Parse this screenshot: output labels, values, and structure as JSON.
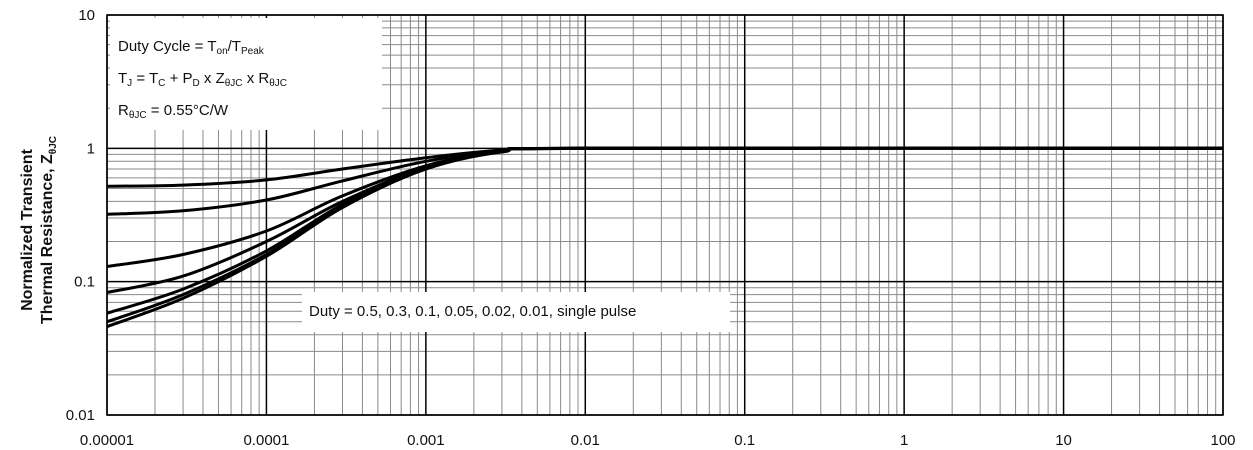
{
  "chart_data": {
    "type": "line",
    "x_scale": "log",
    "y_scale": "log",
    "xlim": [
      1e-05,
      100
    ],
    "ylim": [
      0.01,
      10
    ],
    "grid": true,
    "x_ticks": [
      "0.00001",
      "0.0001",
      "0.001",
      "0.01",
      "0.1",
      "1",
      "10",
      "100"
    ],
    "y_ticks": [
      "0.01",
      "0.1",
      "1",
      "10"
    ],
    "ylabel_line1": "Normalized Transient",
    "ylabel_line2": "Thermal Resistance, Z",
    "ylabel_sub": "θJC",
    "annotation_box": {
      "line1": {
        "a": "Duty Cycle = T",
        "a_sub": "on",
        "b": "/T",
        "b_sub": "Peak"
      },
      "line2": {
        "a": "T",
        "a_sub": "J",
        "b": " = T",
        "b_sub": "C",
        "c": " + P",
        "c_sub": "D",
        "d": " x Z",
        "d_sub": "θJC",
        "e": " x R",
        "e_sub": "θJC"
      },
      "line3": {
        "a": "R",
        "a_sub": "θJC",
        "b": " = 0.55°C/W"
      }
    },
    "duty_label": "Duty = 0.5, 0.3, 0.1, 0.05, 0.02, 0.01, single pulse",
    "series": [
      {
        "x": [
          1e-05,
          3e-05,
          0.0001,
          0.0003,
          0.001,
          0.003,
          0.01,
          100
        ],
        "y": [
          0.52,
          0.53,
          0.58,
          0.7,
          0.85,
          0.97,
          1.0,
          1.0
        ]
      },
      {
        "x": [
          1e-05,
          3e-05,
          0.0001,
          0.0003,
          0.001,
          0.003,
          0.01,
          100
        ],
        "y": [
          0.32,
          0.34,
          0.41,
          0.57,
          0.8,
          0.96,
          1.0,
          1.0
        ]
      },
      {
        "x": [
          1e-05,
          3e-05,
          0.0001,
          0.0003,
          0.001,
          0.003,
          0.01,
          100
        ],
        "y": [
          0.13,
          0.16,
          0.24,
          0.44,
          0.74,
          0.95,
          1.0,
          1.0
        ]
      },
      {
        "x": [
          1e-05,
          3e-05,
          0.0001,
          0.0003,
          0.001,
          0.003,
          0.01,
          100
        ],
        "y": [
          0.083,
          0.11,
          0.2,
          0.4,
          0.72,
          0.95,
          1.0,
          1.0
        ]
      },
      {
        "x": [
          1e-05,
          3e-05,
          0.0001,
          0.0003,
          0.001,
          0.003,
          0.01,
          100
        ],
        "y": [
          0.058,
          0.088,
          0.17,
          0.38,
          0.71,
          0.95,
          1.0,
          1.0
        ]
      },
      {
        "x": [
          1e-05,
          3e-05,
          0.0001,
          0.0003,
          0.001,
          0.003,
          0.01,
          100
        ],
        "y": [
          0.05,
          0.08,
          0.16,
          0.37,
          0.7,
          0.94,
          1.0,
          1.0
        ]
      },
      {
        "x": [
          1e-05,
          3e-05,
          0.0001,
          0.0003,
          0.001,
          0.003,
          0.01,
          100
        ],
        "y": [
          0.046,
          0.075,
          0.155,
          0.36,
          0.7,
          0.94,
          1.0,
          1.0
        ]
      }
    ]
  }
}
